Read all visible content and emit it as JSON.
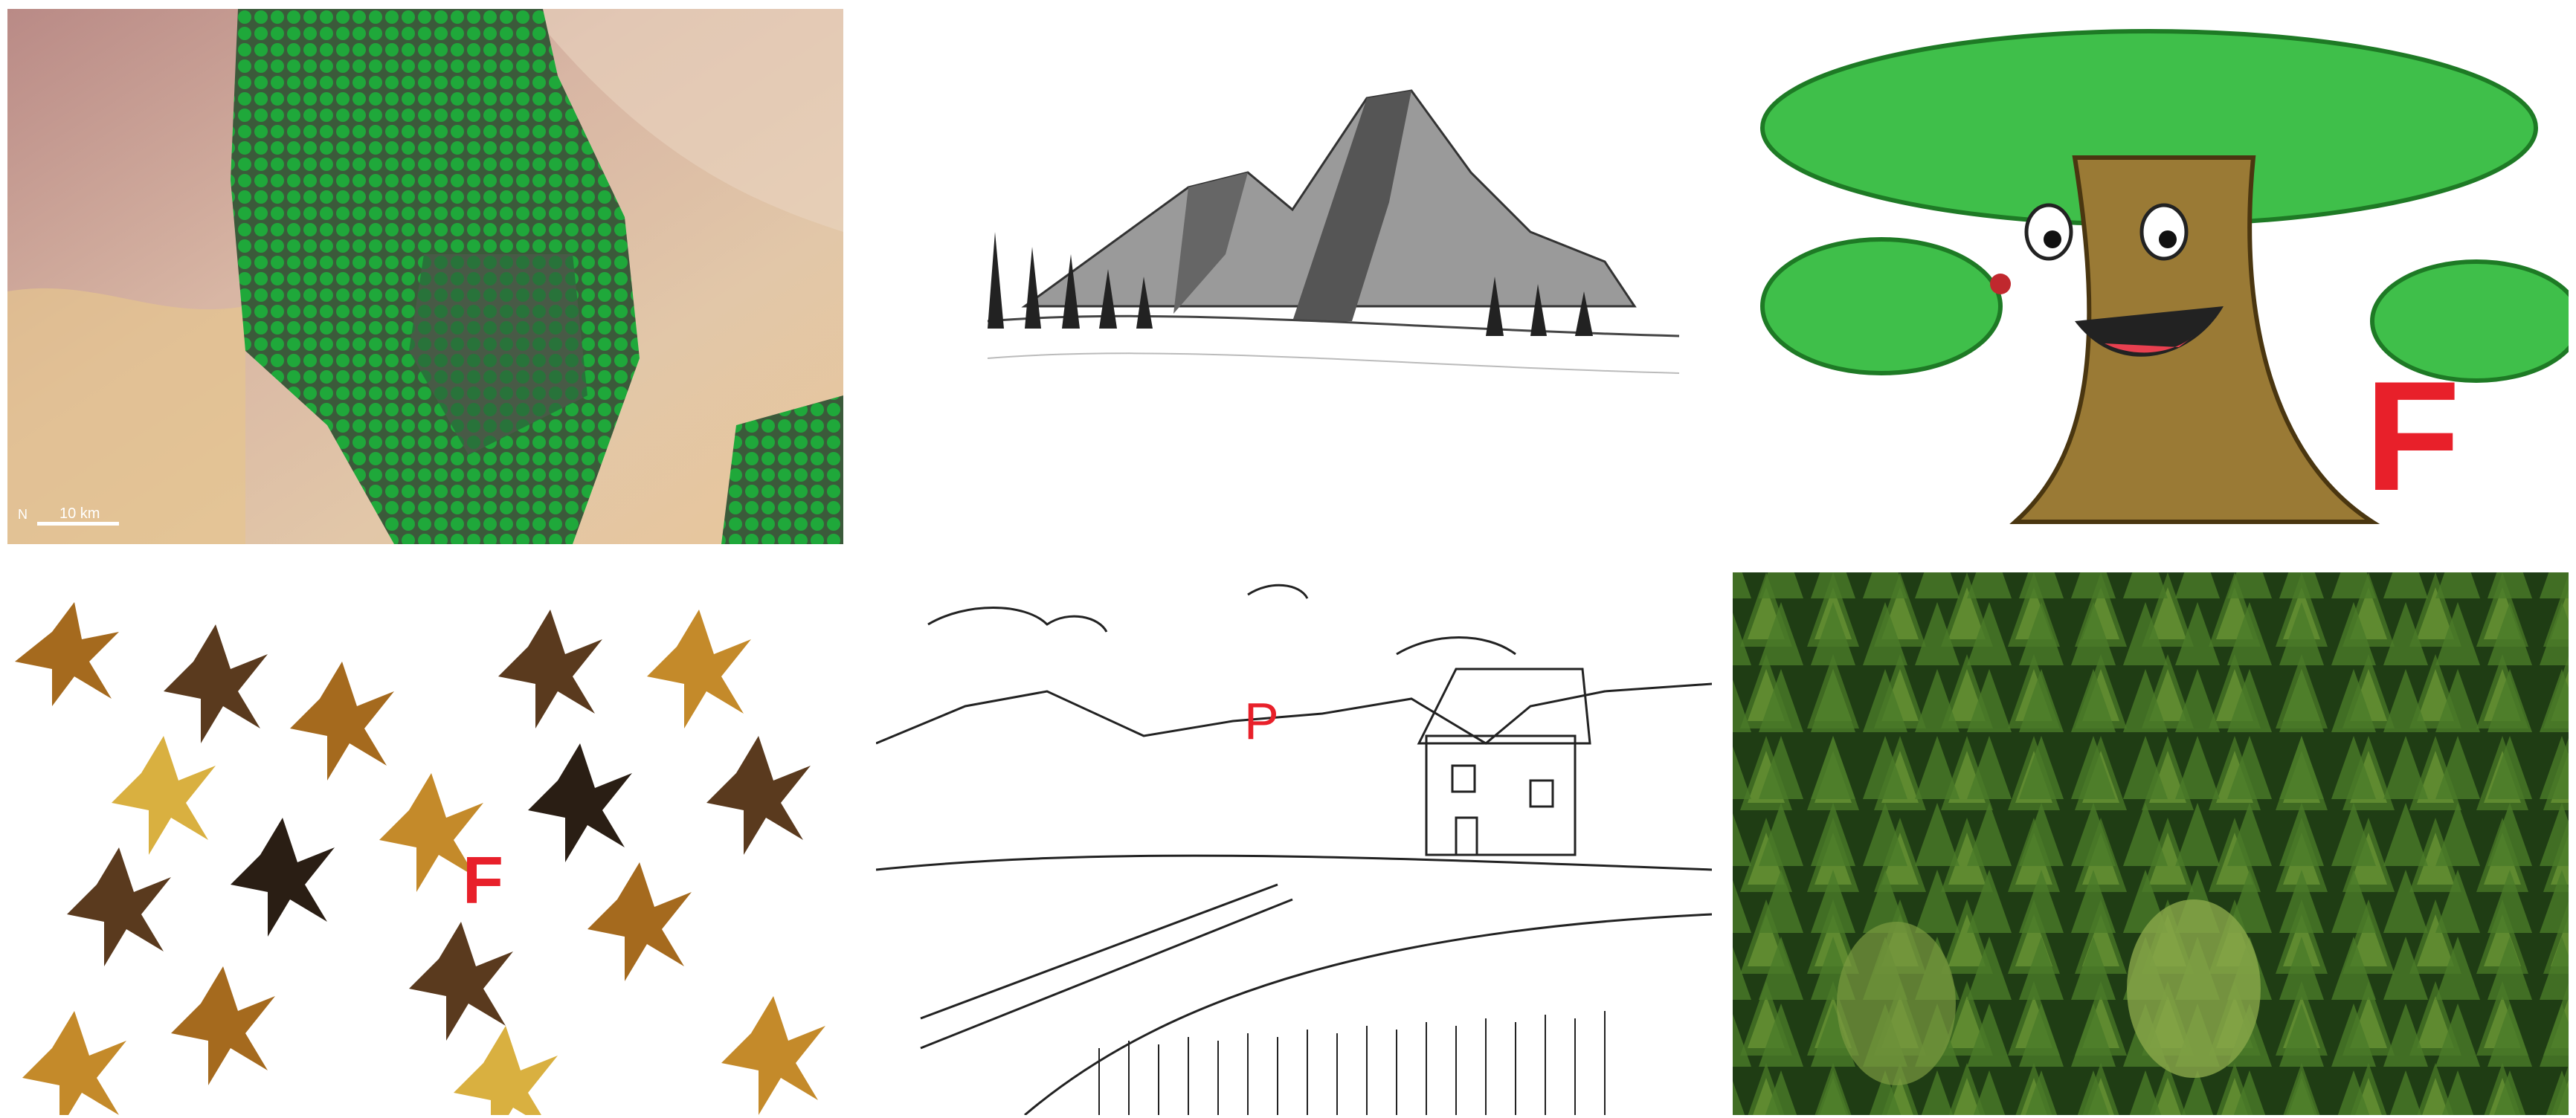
{
  "panels": {
    "satellite": {
      "scale_label": "10 km",
      "north_label": "N"
    },
    "tree_character": {
      "letter": "F"
    },
    "autumn_leaves": {
      "letter": "F"
    },
    "farmhouse_sketch": {
      "letter": "P"
    }
  },
  "colors": {
    "letter_red": "#e8202a",
    "field_green": "#1fa83a",
    "canopy_green": "#3fbf4a",
    "trunk_brown": "#9a7a35",
    "forest_dark": "#1f3d14"
  }
}
